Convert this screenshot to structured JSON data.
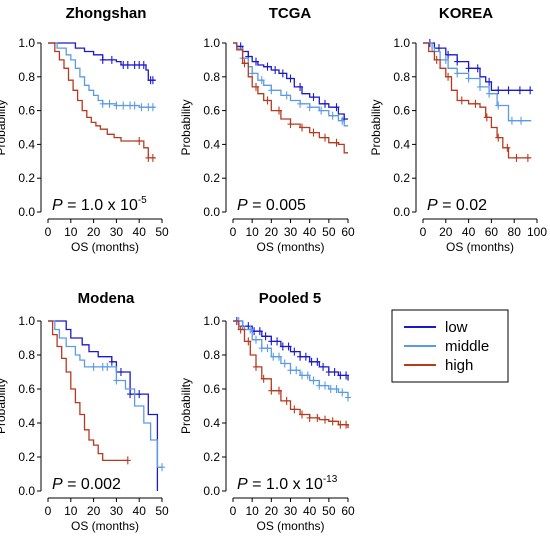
{
  "colors": {
    "low": "#1a1acc",
    "middle": "#5b9be6",
    "high": "#b8391e"
  },
  "legend": {
    "items": [
      {
        "label": "low",
        "color": "#1a1acc"
      },
      {
        "label": "middle",
        "color": "#5b9be6"
      },
      {
        "label": "high",
        "color": "#b8391e"
      }
    ]
  },
  "chart_data": [
    {
      "type": "line",
      "title": "Zhongshan",
      "xlabel": "OS (months)",
      "ylabel": "Probability",
      "xlim": [
        0,
        50
      ],
      "ylim": [
        0,
        1.0
      ],
      "xticks": [
        "0",
        "10",
        "20",
        "30",
        "40",
        "50"
      ],
      "yticks": [
        "0.0",
        "0.2",
        "0.4",
        "0.6",
        "0.8",
        "1.0"
      ],
      "p_value": {
        "prefix": "P",
        "text": " = 1.0 x 10",
        "exponent": "-5"
      },
      "series": [
        {
          "name": "low",
          "x": [
            0,
            8,
            12,
            16,
            20,
            24,
            26,
            30,
            32,
            34,
            36,
            38,
            40,
            43,
            44,
            47
          ],
          "y": [
            1.0,
            1.0,
            0.97,
            0.95,
            0.93,
            0.9,
            0.9,
            0.89,
            0.87,
            0.87,
            0.87,
            0.87,
            0.87,
            0.84,
            0.78,
            0.78
          ],
          "censor_x": [
            24,
            28,
            33,
            35,
            38,
            40,
            42,
            45,
            46
          ]
        },
        {
          "name": "middle",
          "x": [
            0,
            4,
            8,
            10,
            12,
            14,
            16,
            18,
            20,
            22,
            24,
            28,
            30,
            35,
            40,
            44,
            47
          ],
          "y": [
            1.0,
            0.97,
            0.93,
            0.9,
            0.85,
            0.8,
            0.75,
            0.72,
            0.69,
            0.66,
            0.64,
            0.64,
            0.63,
            0.63,
            0.62,
            0.62,
            0.62
          ],
          "censor_x": [
            24,
            27,
            30,
            33,
            36,
            38,
            41,
            44,
            46
          ]
        },
        {
          "name": "high",
          "x": [
            0,
            3,
            5,
            7,
            9,
            11,
            13,
            15,
            17,
            19,
            21,
            23,
            26,
            29,
            32,
            35,
            40,
            42,
            44,
            47
          ],
          "y": [
            1.0,
            0.95,
            0.9,
            0.85,
            0.78,
            0.72,
            0.66,
            0.6,
            0.56,
            0.53,
            0.51,
            0.49,
            0.46,
            0.44,
            0.42,
            0.42,
            0.42,
            0.38,
            0.32,
            0.32
          ],
          "censor_x": [
            40,
            44,
            46
          ]
        }
      ]
    },
    {
      "type": "line",
      "title": "TCGA",
      "xlabel": "OS (months)",
      "ylabel": "Probability",
      "xlim": [
        0,
        60
      ],
      "ylim": [
        0,
        1.0
      ],
      "xticks": [
        "0",
        "10",
        "20",
        "30",
        "40",
        "50",
        "60"
      ],
      "yticks": [
        "0.0",
        "0.2",
        "0.4",
        "0.6",
        "0.8",
        "1.0"
      ],
      "p_value": {
        "prefix": "P",
        "text": " = 0.005",
        "exponent": ""
      },
      "series": [
        {
          "name": "low",
          "x": [
            0,
            2,
            5,
            8,
            10,
            13,
            16,
            20,
            24,
            28,
            32,
            36,
            40,
            45,
            50,
            55,
            58,
            60
          ],
          "y": [
            1.0,
            0.98,
            0.95,
            0.92,
            0.89,
            0.87,
            0.86,
            0.84,
            0.82,
            0.79,
            0.74,
            0.7,
            0.68,
            0.64,
            0.62,
            0.58,
            0.55,
            0.55
          ],
          "censor_x": [
            4,
            8,
            12,
            18,
            22,
            26,
            30,
            35,
            42,
            48,
            54,
            58
          ]
        },
        {
          "name": "middle",
          "x": [
            0,
            2,
            5,
            8,
            10,
            13,
            16,
            20,
            25,
            30,
            35,
            40,
            45,
            50,
            55,
            58,
            60
          ],
          "y": [
            1.0,
            0.97,
            0.91,
            0.86,
            0.82,
            0.78,
            0.75,
            0.72,
            0.69,
            0.66,
            0.64,
            0.62,
            0.6,
            0.57,
            0.54,
            0.51,
            0.51
          ],
          "censor_x": [
            5,
            10,
            15,
            20,
            28,
            35,
            40,
            46,
            52,
            57
          ]
        },
        {
          "name": "high",
          "x": [
            0,
            2,
            5,
            8,
            10,
            13,
            16,
            20,
            25,
            30,
            35,
            40,
            45,
            50,
            55,
            58,
            60
          ],
          "y": [
            1.0,
            0.96,
            0.88,
            0.8,
            0.74,
            0.7,
            0.66,
            0.6,
            0.55,
            0.52,
            0.5,
            0.47,
            0.44,
            0.41,
            0.4,
            0.35,
            0.35
          ],
          "censor_x": [
            6,
            12,
            18,
            24,
            30,
            36,
            42,
            48,
            54
          ]
        }
      ]
    },
    {
      "type": "line",
      "title": "KOREA",
      "xlabel": "OS (months)",
      "ylabel": "Probability",
      "xlim": [
        0,
        100
      ],
      "ylim": [
        0,
        1.0
      ],
      "xticks": [
        "0",
        "20",
        "40",
        "60",
        "80",
        "100"
      ],
      "yticks": [
        "0.0",
        "0.2",
        "0.4",
        "0.6",
        "0.8",
        "1.0"
      ],
      "p_value": {
        "prefix": "P",
        "text": " = 0.02",
        "exponent": ""
      },
      "series": [
        {
          "name": "low",
          "x": [
            0,
            10,
            20,
            30,
            40,
            50,
            55,
            60,
            70,
            80,
            90,
            95
          ],
          "y": [
            1.0,
            0.97,
            0.93,
            0.89,
            0.85,
            0.8,
            0.77,
            0.72,
            0.72,
            0.72,
            0.72,
            0.72
          ],
          "censor_x": [
            6,
            14,
            22,
            30,
            40,
            48,
            58,
            66,
            75,
            85,
            94
          ]
        },
        {
          "name": "middle",
          "x": [
            0,
            8,
            15,
            22,
            30,
            40,
            50,
            58,
            65,
            75,
            85,
            95
          ],
          "y": [
            1.0,
            0.95,
            0.9,
            0.85,
            0.82,
            0.79,
            0.74,
            0.7,
            0.63,
            0.54,
            0.54,
            0.54
          ],
          "censor_x": [
            10,
            20,
            30,
            40,
            50,
            58,
            66,
            78,
            86
          ]
        },
        {
          "name": "high",
          "x": [
            0,
            5,
            10,
            15,
            20,
            25,
            30,
            40,
            50,
            55,
            60,
            65,
            70,
            75,
            80,
            85,
            95
          ],
          "y": [
            1.0,
            0.95,
            0.9,
            0.85,
            0.8,
            0.72,
            0.66,
            0.64,
            0.62,
            0.56,
            0.5,
            0.44,
            0.38,
            0.32,
            0.32,
            0.32,
            0.32
          ],
          "censor_x": [
            12,
            22,
            34,
            46,
            56,
            66,
            74,
            82,
            92
          ]
        }
      ]
    },
    {
      "type": "line",
      "title": "Modena",
      "xlabel": "OS (months)",
      "ylabel": "Probability",
      "xlim": [
        0,
        50
      ],
      "ylim": [
        0,
        1.0
      ],
      "xticks": [
        "0",
        "10",
        "20",
        "30",
        "40",
        "50"
      ],
      "yticks": [
        "0.0",
        "0.2",
        "0.4",
        "0.6",
        "0.8",
        "1.0"
      ],
      "p_value": {
        "prefix": "P",
        "text": " = 0.002",
        "exponent": ""
      },
      "series": [
        {
          "name": "low",
          "x": [
            0,
            4,
            8,
            10,
            15,
            18,
            22,
            28,
            30,
            36,
            40,
            44,
            45,
            48
          ],
          "y": [
            1.0,
            1.0,
            0.95,
            0.9,
            0.86,
            0.82,
            0.79,
            0.76,
            0.7,
            0.57,
            0.57,
            0.45,
            0.45,
            0.0
          ],
          "censor_x": [
            28,
            32,
            36,
            40
          ]
        },
        {
          "name": "middle",
          "x": [
            0,
            3,
            5,
            8,
            12,
            14,
            16,
            20,
            25,
            30,
            34,
            38,
            42,
            45,
            48,
            50
          ],
          "y": [
            1.0,
            0.95,
            0.9,
            0.85,
            0.8,
            0.77,
            0.73,
            0.73,
            0.73,
            0.65,
            0.6,
            0.5,
            0.4,
            0.3,
            0.14,
            0.14
          ],
          "censor_x": [
            20,
            24,
            26,
            30,
            50
          ]
        },
        {
          "name": "high",
          "x": [
            0,
            2,
            4,
            6,
            8,
            10,
            12,
            14,
            16,
            18,
            20,
            22,
            24,
            28,
            32,
            35
          ],
          "y": [
            1.0,
            0.92,
            0.85,
            0.78,
            0.7,
            0.6,
            0.52,
            0.45,
            0.36,
            0.3,
            0.27,
            0.22,
            0.18,
            0.18,
            0.18,
            0.18
          ],
          "censor_x": [
            35
          ]
        }
      ]
    },
    {
      "type": "line",
      "title": "Pooled 5",
      "xlabel": "OS (months)",
      "ylabel": "Probability",
      "xlim": [
        0,
        60
      ],
      "ylim": [
        0,
        1.0
      ],
      "xticks": [
        "0",
        "10",
        "20",
        "30",
        "40",
        "50",
        "60"
      ],
      "yticks": [
        "0.0",
        "0.2",
        "0.4",
        "0.6",
        "0.8",
        "1.0"
      ],
      "p_value": {
        "prefix": "P",
        "text": " = 1.0 x 10",
        "exponent": "-13"
      },
      "series": [
        {
          "name": "low",
          "x": [
            0,
            5,
            10,
            15,
            20,
            25,
            30,
            35,
            40,
            45,
            50,
            55,
            60
          ],
          "y": [
            1.0,
            0.97,
            0.94,
            0.91,
            0.88,
            0.85,
            0.82,
            0.79,
            0.76,
            0.73,
            0.7,
            0.68,
            0.65
          ],
          "censor_x": [
            2,
            5,
            8,
            11,
            14,
            17,
            20,
            23,
            26,
            29,
            32,
            35,
            38,
            41,
            44,
            47,
            50,
            53,
            56,
            59
          ]
        },
        {
          "name": "middle",
          "x": [
            0,
            5,
            10,
            15,
            20,
            25,
            30,
            35,
            40,
            45,
            50,
            55,
            60
          ],
          "y": [
            1.0,
            0.95,
            0.89,
            0.84,
            0.79,
            0.75,
            0.71,
            0.68,
            0.65,
            0.62,
            0.6,
            0.58,
            0.55
          ],
          "censor_x": [
            3,
            6,
            9,
            12,
            15,
            18,
            21,
            24,
            27,
            30,
            33,
            36,
            39,
            42,
            45,
            48,
            51,
            54,
            57,
            60
          ]
        },
        {
          "name": "high",
          "x": [
            0,
            3,
            6,
            9,
            12,
            15,
            20,
            25,
            30,
            35,
            40,
            45,
            50,
            55,
            60
          ],
          "y": [
            1.0,
            0.95,
            0.88,
            0.8,
            0.73,
            0.66,
            0.59,
            0.53,
            0.48,
            0.45,
            0.43,
            0.42,
            0.41,
            0.39,
            0.37
          ],
          "censor_x": [
            4,
            8,
            12,
            16,
            20,
            24,
            28,
            32,
            36,
            40,
            44,
            48,
            52,
            56,
            59
          ]
        }
      ]
    }
  ]
}
